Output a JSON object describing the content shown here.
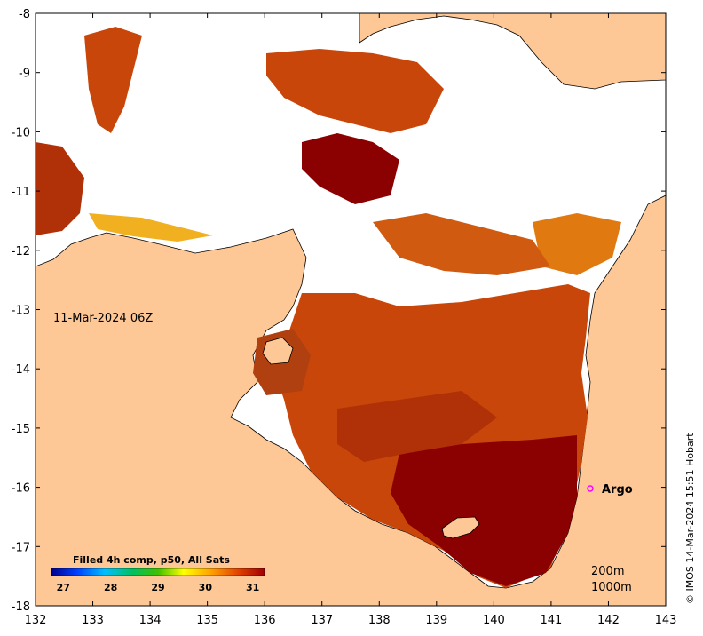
{
  "map": {
    "date_label": "11-Mar-2024 06Z",
    "argo_label": "Argo",
    "credit": "© IMOS 14-Mar-2024 15:51 Hobart",
    "depth_labels": [
      "200m",
      "1000m"
    ],
    "lon_ticks": [
      "132",
      "133",
      "134",
      "135",
      "136",
      "137",
      "138",
      "139",
      "140",
      "141",
      "142",
      "143"
    ],
    "lat_ticks": [
      "-8",
      "-9",
      "-10",
      "-11",
      "-12",
      "-13",
      "-14",
      "-15",
      "-16",
      "-17",
      "-18"
    ],
    "colorbar": {
      "title": "Filled 4h comp, p50, All Sats",
      "ticks": [
        "27",
        "28",
        "29",
        "30",
        "31"
      ],
      "min": 26.75,
      "max": 31.25
    },
    "colors": {
      "land": "#fdc896",
      "sea_no_data": "#ffffff",
      "argo_marker": "#ff00ff",
      "coast": "#000000",
      "warm_dark": "#8b0000",
      "warm_mid": "#c8460a",
      "warm_light": "#e07a10"
    }
  }
}
